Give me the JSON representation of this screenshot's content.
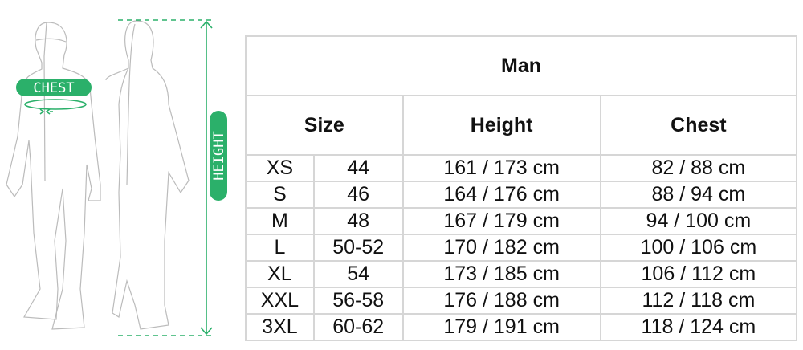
{
  "figure": {
    "chest_label": "CHEST",
    "height_label": "HEIGHT",
    "accent_color": "#2bb06a"
  },
  "table": {
    "title": "Man",
    "headers": [
      "Size",
      "Height",
      "Chest"
    ],
    "rows": [
      [
        "XS",
        "44",
        "161 / 173 cm",
        "82 / 88 cm"
      ],
      [
        "S",
        "46",
        "164 / 176 cm",
        "88 / 94 cm"
      ],
      [
        "M",
        "48",
        "167 / 179 cm",
        "94 / 100 cm"
      ],
      [
        "L",
        "50-52",
        "170 / 182 cm",
        "100 / 106 cm"
      ],
      [
        "XL",
        "54",
        "173 / 185 cm",
        "106 / 112 cm"
      ],
      [
        "XXL",
        "56-58",
        "176 / 188 cm",
        "112 / 118 cm"
      ],
      [
        "3XL",
        "60-62",
        "179 / 191 cm",
        "118 / 124 cm"
      ]
    ]
  }
}
